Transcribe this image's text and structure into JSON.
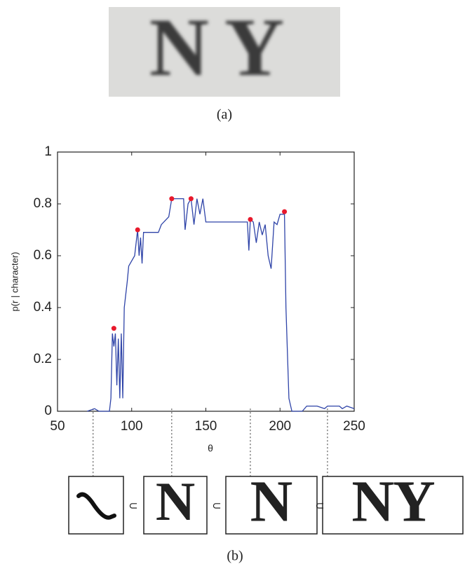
{
  "panel_a": {
    "image_text": "NY",
    "caption": "(a)"
  },
  "chart_data": {
    "type": "line",
    "x_label": "θ",
    "y_label": "p(r | character)",
    "x": [
      70,
      75,
      78,
      85,
      86,
      87,
      88,
      89,
      90,
      91,
      92,
      93,
      94,
      95,
      96,
      97,
      98,
      102,
      104,
      105,
      106,
      107,
      108,
      118,
      120,
      125,
      127,
      135,
      136,
      138,
      140,
      142,
      144,
      146,
      148,
      150,
      178,
      179,
      180,
      182,
      184,
      186,
      188,
      190,
      192,
      194,
      196,
      198,
      200,
      203,
      204,
      206,
      208,
      215,
      218,
      225,
      230,
      232,
      240,
      242,
      245,
      250
    ],
    "series": [
      {
        "color": "#2f44a8",
        "values": [
          0,
          0.01,
          0,
          0,
          0.05,
          0.3,
          0.25,
          0.3,
          0.1,
          0.28,
          0.05,
          0.3,
          0.05,
          0.4,
          0.45,
          0.5,
          0.56,
          0.6,
          0.7,
          0.6,
          0.67,
          0.57,
          0.69,
          0.69,
          0.72,
          0.75,
          0.82,
          0.82,
          0.7,
          0.8,
          0.82,
          0.72,
          0.82,
          0.76,
          0.82,
          0.73,
          0.73,
          0.62,
          0.74,
          0.73,
          0.65,
          0.73,
          0.68,
          0.72,
          0.6,
          0.55,
          0.73,
          0.72,
          0.76,
          0.76,
          0.4,
          0.05,
          0,
          0,
          0.02,
          0.02,
          0.01,
          0.02,
          0.02,
          0.01,
          0.02,
          0.01
        ]
      }
    ],
    "peaks": {
      "x": [
        88,
        104,
        127,
        140,
        180,
        203
      ],
      "values": [
        0.32,
        0.7,
        0.82,
        0.82,
        0.74,
        0.77
      ],
      "color": "#e8192c"
    },
    "guides_x": [
      74,
      127,
      180,
      232
    ],
    "xlim": [
      50,
      250
    ],
    "ylim": [
      0,
      1
    ],
    "xticks": [
      50,
      100,
      150,
      200,
      250
    ],
    "yticks": [
      0,
      0.2,
      0.4,
      0.6,
      0.8,
      1
    ]
  },
  "panel_b": {
    "glyphs": [
      "N",
      "N",
      "NY"
    ],
    "subset_symbol": "⊂",
    "caption": "(b)"
  }
}
